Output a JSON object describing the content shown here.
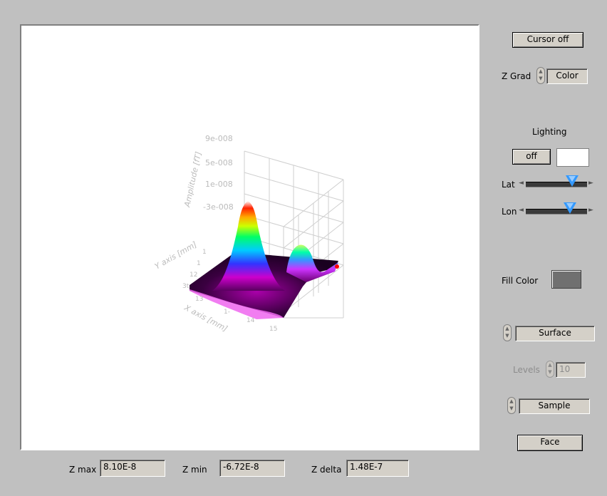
{
  "plot": {
    "z_ticks": [
      "9e-008",
      "5e-008",
      "1e-008",
      "-3e-008"
    ],
    "z_label": "Amplitude [fT]",
    "y_label": "Y axis [mm]",
    "x_label": "X axis [mm]",
    "y_ticks": [
      "1",
      "1",
      "12",
      "3t"
    ],
    "x_ticks": [
      "13",
      "1-",
      "14",
      "15"
    ]
  },
  "controls": {
    "cursor_button": "Cursor off",
    "zgrad_label": "Z Grad",
    "zgrad_value": "Color",
    "lighting_title": "Lighting",
    "lighting_button": "off",
    "lat_label": "Lat",
    "lon_label": "Lon",
    "lat_value": 0.75,
    "lon_value": 0.72,
    "fill_color_label": "Fill Color",
    "fill_color": "#707070",
    "plot_style": "Surface",
    "levels_label": "Levels",
    "levels_value": "10",
    "sample_mode": "Sample",
    "face_button": "Face"
  },
  "status": {
    "zmax_label": "Z max",
    "zmax_value": "8.10E-8",
    "zmin_label": "Z min",
    "zmin_value": "-6.72E-8",
    "zdelta_label": "Z delta",
    "zdelta_value": "1.48E-7"
  }
}
